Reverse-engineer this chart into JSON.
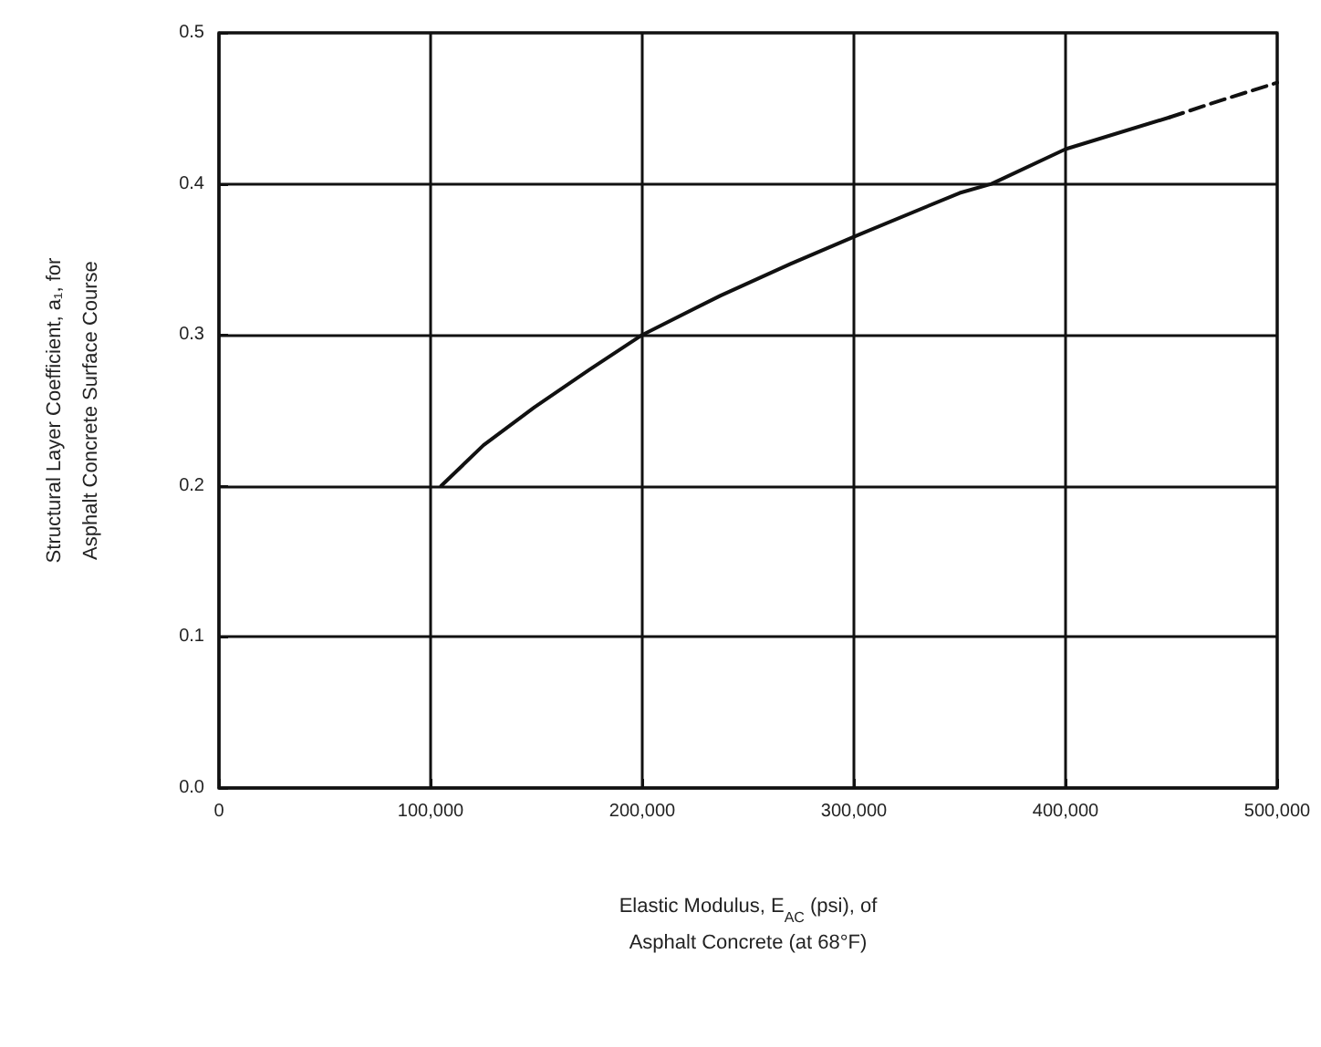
{
  "chart_data": {
    "type": "line",
    "xlabel": "Elastic Modulus, E$_{AC}$ (psi), of\nAsphalt Concrete (at 68°F)",
    "ylabel": "Structural Layer Coefficient, a₁, for\nAsphalt Concrete Surface Course",
    "series": [
      {
        "color": "#111111",
        "line_style": "solid",
        "x": [
          105000,
          125000,
          149000,
          175000,
          200000,
          237000,
          270000,
          300000,
          350000,
          365000,
          400000,
          449000
        ],
        "values": [
          0.2,
          0.227,
          0.252,
          0.277,
          0.3,
          0.326,
          0.347,
          0.365,
          0.394,
          0.4,
          0.423,
          0.444
        ]
      },
      {
        "color": "#111111",
        "line_style": "dashed",
        "x": [
          449000,
          475000,
          500000
        ],
        "values": [
          0.444,
          0.456,
          0.467
        ]
      }
    ],
    "xlim": [
      0,
      500000
    ],
    "ylim": [
      0,
      0.5
    ],
    "xticks": [
      0,
      {
        "value": 100000,
        "label": "100,000"
      },
      {
        "value": 200000,
        "label": "200,000"
      },
      {
        "value": 300000,
        "label": "300,000"
      },
      {
        "value": 400000,
        "label": "400,000"
      },
      {
        "value": 500000,
        "label": "500,000"
      }
    ],
    "yticks": [
      {
        "value": 0,
        "label": "0.0"
      },
      0.1,
      0.2,
      0.3,
      0.4,
      0.5
    ],
    "grid": true,
    "marker": "none"
  }
}
